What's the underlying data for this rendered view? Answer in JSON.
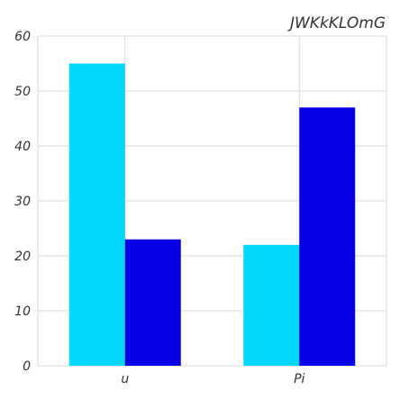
{
  "chart_data": {
    "type": "bar",
    "title": "JWKkKLOmG",
    "categories": [
      "u",
      "Pi"
    ],
    "series": [
      {
        "values": [
          55,
          22
        ],
        "color": "#00d8ff"
      },
      {
        "values": [
          23,
          47
        ],
        "color": "#0a00e6"
      }
    ],
    "ylim": [
      0,
      60
    ],
    "yticks": [
      0,
      10,
      20,
      30,
      40,
      50,
      60
    ],
    "grid": true,
    "xlabel": "",
    "ylabel": ""
  }
}
